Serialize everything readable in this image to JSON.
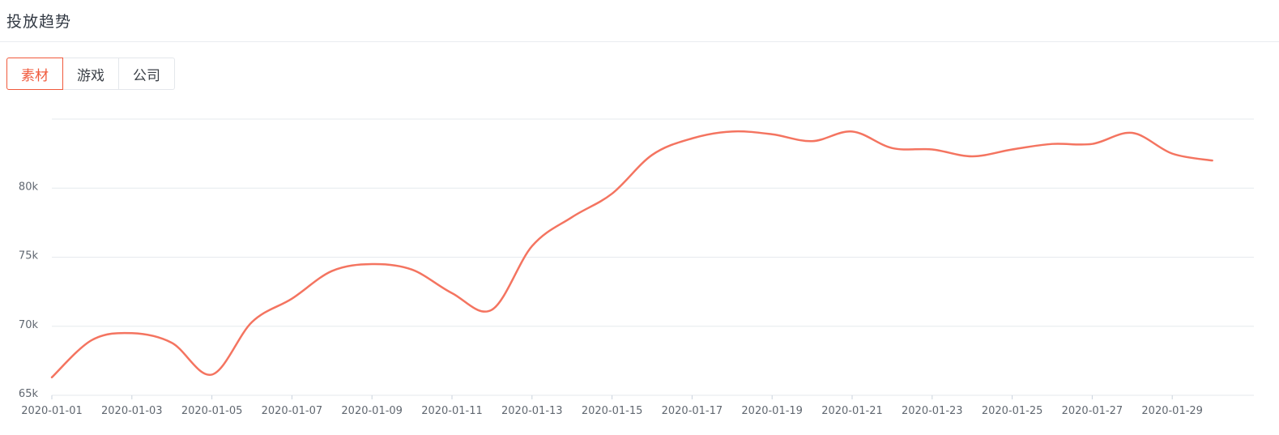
{
  "header": {
    "title": "投放趋势"
  },
  "tabs": [
    {
      "label": "素材",
      "active": true
    },
    {
      "label": "游戏",
      "active": false
    },
    {
      "label": "公司",
      "active": false
    }
  ],
  "colors": {
    "line": "#f47460",
    "active_tab": "#f05a3c",
    "grid": "#e6eaee"
  },
  "chart_data": {
    "type": "line",
    "x": [
      "2020-01-01",
      "2020-01-02",
      "2020-01-03",
      "2020-01-04",
      "2020-01-05",
      "2020-01-06",
      "2020-01-07",
      "2020-01-08",
      "2020-01-09",
      "2020-01-10",
      "2020-01-11",
      "2020-01-12",
      "2020-01-13",
      "2020-01-14",
      "2020-01-15",
      "2020-01-16",
      "2020-01-17",
      "2020-01-18",
      "2020-01-19",
      "2020-01-20",
      "2020-01-21",
      "2020-01-22",
      "2020-01-23",
      "2020-01-24",
      "2020-01-25",
      "2020-01-26",
      "2020-01-27",
      "2020-01-28",
      "2020-01-29",
      "2020-01-30"
    ],
    "x_tick_labels": [
      "2020-01-01",
      "2020-01-03",
      "2020-01-05",
      "2020-01-07",
      "2020-01-09",
      "2020-01-11",
      "2020-01-13",
      "2020-01-15",
      "2020-01-17",
      "2020-01-19",
      "2020-01-21",
      "2020-01-23",
      "2020-01-25",
      "2020-01-27",
      "2020-01-29"
    ],
    "series": [
      {
        "values": [
          66300,
          69000,
          69500,
          68800,
          66500,
          70300,
          72000,
          74000,
          74500,
          74100,
          72400,
          71200,
          75800,
          77900,
          79600,
          82400,
          83600,
          84100,
          83900,
          83400,
          84100,
          82900,
          82800,
          82300,
          82800,
          83200,
          83200,
          84000,
          82500,
          82000
        ]
      }
    ],
    "y_tick_labels": [
      "65k",
      "70k",
      "75k",
      "80k"
    ],
    "ylim": [
      65000,
      85000
    ],
    "grid": true,
    "legend": "none",
    "title": "",
    "xlabel": "",
    "ylabel": ""
  }
}
